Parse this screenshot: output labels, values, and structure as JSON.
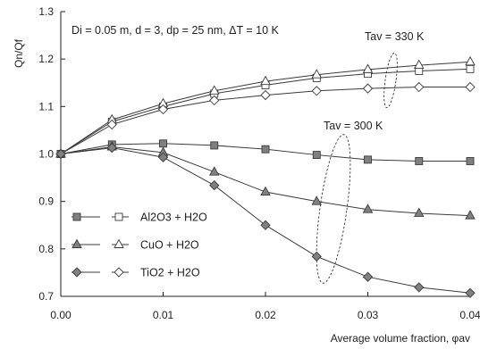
{
  "chart_data": {
    "type": "line",
    "x": [
      0,
      0.005,
      0.01,
      0.015,
      0.02,
      0.025,
      0.03,
      0.035,
      0.04
    ],
    "xlim": [
      0,
      0.04
    ],
    "ylim": [
      0.7,
      1.3
    ],
    "xticks": [
      "0.00",
      "0.01",
      "0.02",
      "0.03",
      "0.04"
    ],
    "yticks": [
      "0.7",
      "0.8",
      "0.9",
      "1.0",
      "1.1",
      "1.2",
      "1.3"
    ],
    "xlabel": "Average volume fraction, φav",
    "ylabel": "Qn/Qf",
    "grid": false,
    "legend_position": "bottom-left",
    "annotations": {
      "params": "Di = 0.05 m, d = 3, dp = 25 nm, ΔT = 10 K",
      "tav_330": "Tav = 330 K",
      "tav_300": "Tav = 300 K"
    },
    "legend": [
      {
        "label": "Al2O3 + H2O",
        "marker": "square"
      },
      {
        "label": "CuO + H2O",
        "marker": "triangle"
      },
      {
        "label": "TiO2 + H2O",
        "marker": "diamond"
      }
    ],
    "series": [
      {
        "fluid": "Al2O3 + H2O",
        "tav": "330 K",
        "marker": "square",
        "fill": "open",
        "values": [
          1.0,
          1.068,
          1.1,
          1.127,
          1.145,
          1.16,
          1.169,
          1.175,
          1.179
        ]
      },
      {
        "fluid": "CuO + H2O",
        "tav": "330 K",
        "marker": "triangle",
        "fill": "open",
        "values": [
          1.0,
          1.072,
          1.106,
          1.133,
          1.153,
          1.167,
          1.178,
          1.187,
          1.194
        ]
      },
      {
        "fluid": "TiO2 + H2O",
        "tav": "330 K",
        "marker": "diamond",
        "fill": "open",
        "values": [
          1.0,
          1.062,
          1.094,
          1.113,
          1.124,
          1.133,
          1.138,
          1.141,
          1.141
        ]
      },
      {
        "fluid": "Al2O3 + H2O",
        "tav": "300 K",
        "marker": "square",
        "fill": "filled",
        "values": [
          1.0,
          1.02,
          1.022,
          1.018,
          1.01,
          0.998,
          0.988,
          0.985,
          0.985
        ]
      },
      {
        "fluid": "CuO + H2O",
        "tav": "300 K",
        "marker": "triangle",
        "fill": "filled",
        "values": [
          1.0,
          1.015,
          1.003,
          0.962,
          0.92,
          0.9,
          0.883,
          0.875,
          0.87
        ]
      },
      {
        "fluid": "TiO2 + H2O",
        "tav": "300 K",
        "marker": "diamond",
        "fill": "filled",
        "values": [
          1.0,
          1.013,
          0.993,
          0.934,
          0.85,
          0.784,
          0.741,
          0.719,
          0.707
        ]
      }
    ],
    "colors": {
      "marker_fill": "#808080",
      "line": "#3a3a3a",
      "axis": "#231f20"
    }
  }
}
